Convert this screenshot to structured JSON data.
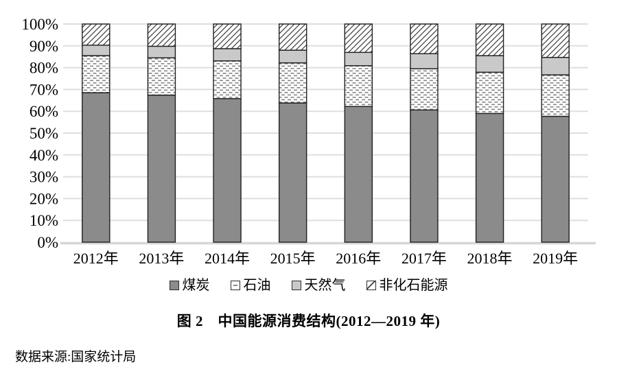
{
  "figure": {
    "title": "图 2　中国能源消费结构(2012—2019 年)",
    "source": "数据来源:国家统计局"
  },
  "chart_data": {
    "type": "bar",
    "stacked": true,
    "title": "图 2　中国能源消费结构(2012—2019 年)",
    "categories": [
      "2012年",
      "2013年",
      "2014年",
      "2015年",
      "2016年",
      "2017年",
      "2018年",
      "2019年"
    ],
    "series": [
      {
        "key": "coal",
        "name": "煤炭",
        "style": "solid-dark",
        "values": [
          68.5,
          67.4,
          65.8,
          63.8,
          62.2,
          60.6,
          59.0,
          57.7
        ]
      },
      {
        "key": "oil",
        "name": "石油",
        "style": "dashed-dots",
        "values": [
          17.0,
          17.1,
          17.3,
          18.4,
          18.7,
          18.9,
          18.9,
          19.0
        ]
      },
      {
        "key": "natural-gas",
        "name": "天然气",
        "style": "solid-light",
        "values": [
          4.8,
          5.3,
          5.6,
          5.8,
          6.1,
          6.9,
          7.6,
          8.0
        ]
      },
      {
        "key": "non-fossil",
        "name": "非化石能源",
        "style": "diagonal-hatch",
        "values": [
          9.7,
          10.2,
          11.3,
          12.0,
          13.0,
          13.6,
          14.5,
          15.3
        ]
      }
    ],
    "xlabel": "",
    "ylabel": "",
    "ylim": [
      0,
      100
    ],
    "ytick_step": 10,
    "ytick_labels": [
      "0%",
      "10%",
      "20%",
      "30%",
      "40%",
      "50%",
      "60%",
      "70%",
      "80%",
      "90%",
      "100%"
    ],
    "grid": true,
    "legend_position": "bottom"
  },
  "colors": {
    "coal_fill": "#8b8b8b",
    "natural_gas_fill": "#c9c9c9",
    "oil_dash": "#8a8a8a",
    "hatch_line": "#3c3c3c",
    "segment_border": "#1f1f1f",
    "gridline": "#dedede",
    "baseline": "#d6d6d6",
    "text": "#000000"
  }
}
